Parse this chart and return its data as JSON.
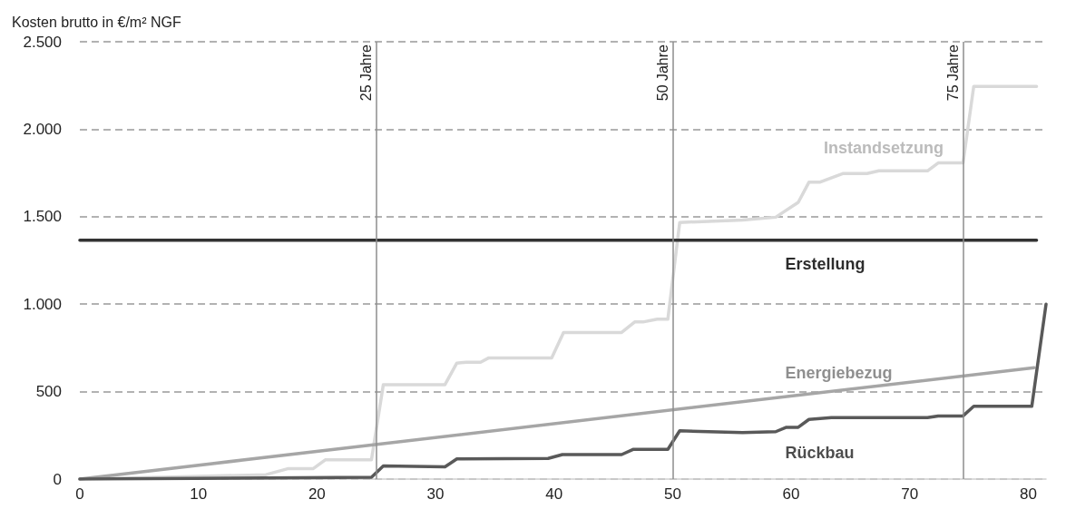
{
  "chart_data": {
    "type": "line",
    "ylabel": "Kosten brutto in €/m² NGF",
    "xlim": [
      0,
      81.5
    ],
    "xticks": [
      0,
      10,
      20,
      30,
      40,
      50,
      60,
      70,
      80
    ],
    "ylim": [
      0,
      2500
    ],
    "yticks": [
      {
        "value": 0,
        "label": "0"
      },
      {
        "value": 500,
        "label": "500"
      },
      {
        "value": 1000,
        "label": "1.000"
      },
      {
        "value": 1500,
        "label": "1.500"
      },
      {
        "value": 2000,
        "label": "2.000"
      },
      {
        "value": 2500,
        "label": "2.500"
      }
    ],
    "grid": "y",
    "legend": false,
    "marker": "none",
    "line_style": "solid",
    "ref_lines": [
      {
        "axis": "x",
        "value": 25,
        "label": "25 Jahre",
        "color": "#8c8c8c"
      },
      {
        "axis": "x",
        "value": 50,
        "label": "50 Jahre",
        "color": "#8c8c8c"
      },
      {
        "axis": "x",
        "value": 74.5,
        "label": "75 Jahre",
        "color": "#8c8c8c"
      }
    ],
    "series": [
      {
        "name": "Instandsetzung",
        "color": "#d9d9d9",
        "x": [
          0,
          6.9,
          15.7,
          17.6,
          19.7,
          20.7,
          24.6,
          25.6,
          30.8,
          31.8,
          32.6,
          33.8,
          34.5,
          39.8,
          40.8,
          45.7,
          46.8,
          47.5,
          48.7,
          49.6,
          50.6,
          55.9,
          58.7,
          60.6,
          61.5,
          62.4,
          64.4,
          66.4,
          67.4,
          71.5,
          72.4,
          74.5,
          75.4,
          80.7
        ],
        "values": [
          0,
          10,
          25,
          60,
          60,
          110,
          110,
          540,
          540,
          663,
          668,
          668,
          693,
          693,
          838,
          838,
          898,
          898,
          914,
          914,
          1467,
          1481,
          1497,
          1582,
          1697,
          1697,
          1747,
          1747,
          1762,
          1762,
          1807,
          1807,
          2244,
          2244
        ]
      },
      {
        "name": "Erstellung",
        "color": "#333333",
        "x": [
          0,
          80.7
        ],
        "values": [
          1365,
          1365
        ]
      },
      {
        "name": "Energiebezug",
        "color": "#a6a6a6",
        "x": [
          0,
          80.5
        ],
        "values": [
          0,
          637
        ]
      },
      {
        "name": "Rückbau",
        "color": "#595959",
        "x": [
          0,
          24.6,
          25.6,
          30.8,
          31.8,
          39.5,
          40.7,
          45.7,
          46.7,
          49.6,
          50.6,
          55.9,
          58.7,
          59.6,
          60.6,
          61.5,
          63.4,
          71.5,
          72.4,
          74.5,
          75.4,
          80.3,
          81.5
        ],
        "values": [
          0,
          10,
          75,
          70,
          115,
          118,
          140,
          140,
          170,
          170,
          276,
          266,
          271,
          296,
          296,
          341,
          351,
          351,
          361,
          361,
          416,
          416,
          1000
        ]
      }
    ]
  }
}
